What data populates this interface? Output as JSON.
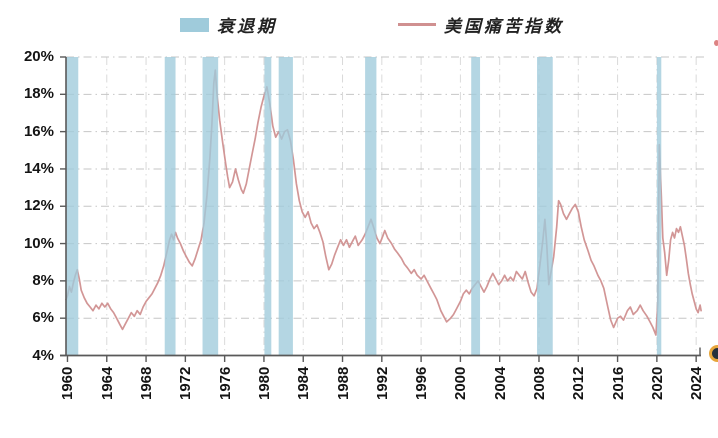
{
  "legend": {
    "recession_label": "衰退期",
    "series_label": "美国痛苦指数"
  },
  "chart_data": {
    "type": "line",
    "title": "",
    "xlabel": "",
    "ylabel": "",
    "legend_position": "top",
    "grid": "dash-dot horizontal and vertical",
    "y_range": [
      4,
      20
    ],
    "x_range": [
      1959.85,
      2024.9
    ],
    "y_ticks": [
      "20%",
      "18%",
      "16%",
      "14%",
      "12%",
      "10%",
      "8%",
      "6%",
      "4%"
    ],
    "y_tick_values": [
      20,
      18,
      16,
      14,
      12,
      10,
      8,
      6,
      4
    ],
    "x_ticks": [
      "1960",
      "1964",
      "1968",
      "1972",
      "1976",
      "1980",
      "1984",
      "1988",
      "1992",
      "1996",
      "2000",
      "2004",
      "2008",
      "2012",
      "2016",
      "2020",
      "2024"
    ],
    "x_tick_values": [
      1960,
      1964,
      1968,
      1972,
      1976,
      1980,
      1984,
      1988,
      1992,
      1996,
      2000,
      2004,
      2008,
      2012,
      2016,
      2020,
      2024
    ],
    "recession_bands": [
      [
        1959.9,
        1961.1
      ],
      [
        1969.9,
        1971.0
      ],
      [
        1973.75,
        1975.34
      ],
      [
        1980.05,
        1980.75
      ],
      [
        1981.5,
        1982.95
      ],
      [
        1990.3,
        1991.45
      ],
      [
        2001.1,
        2002.0
      ],
      [
        2007.8,
        2009.4
      ],
      [
        2020.0,
        2020.45
      ]
    ],
    "series": [
      {
        "name": "美国痛苦指数",
        "points": [
          [
            1959.85,
            7.0
          ],
          [
            1960.0,
            7.2
          ],
          [
            1960.2,
            7.7
          ],
          [
            1960.4,
            7.4
          ],
          [
            1960.6,
            7.9
          ],
          [
            1960.8,
            8.3
          ],
          [
            1961.0,
            8.6
          ],
          [
            1961.2,
            8.1
          ],
          [
            1961.4,
            7.5
          ],
          [
            1961.7,
            7.1
          ],
          [
            1962.0,
            6.8
          ],
          [
            1962.3,
            6.6
          ],
          [
            1962.6,
            6.4
          ],
          [
            1962.9,
            6.7
          ],
          [
            1963.2,
            6.5
          ],
          [
            1963.5,
            6.8
          ],
          [
            1963.8,
            6.6
          ],
          [
            1964.1,
            6.8
          ],
          [
            1964.4,
            6.5
          ],
          [
            1964.7,
            6.3
          ],
          [
            1965.0,
            6.0
          ],
          [
            1965.3,
            5.7
          ],
          [
            1965.6,
            5.4
          ],
          [
            1965.9,
            5.7
          ],
          [
            1966.2,
            6.0
          ],
          [
            1966.5,
            6.3
          ],
          [
            1966.8,
            6.1
          ],
          [
            1967.1,
            6.4
          ],
          [
            1967.4,
            6.2
          ],
          [
            1967.7,
            6.6
          ],
          [
            1968.0,
            6.9
          ],
          [
            1968.3,
            7.1
          ],
          [
            1968.6,
            7.3
          ],
          [
            1968.9,
            7.6
          ],
          [
            1969.2,
            7.9
          ],
          [
            1969.5,
            8.3
          ],
          [
            1969.8,
            8.8
          ],
          [
            1970.1,
            9.5
          ],
          [
            1970.4,
            10.2
          ],
          [
            1970.6,
            10.5
          ],
          [
            1970.8,
            10.2
          ],
          [
            1971.0,
            10.6
          ],
          [
            1971.2,
            10.3
          ],
          [
            1971.5,
            10.0
          ],
          [
            1971.8,
            9.6
          ],
          [
            1972.1,
            9.3
          ],
          [
            1972.4,
            9.0
          ],
          [
            1972.7,
            8.8
          ],
          [
            1973.0,
            9.2
          ],
          [
            1973.3,
            9.7
          ],
          [
            1973.6,
            10.2
          ],
          [
            1973.9,
            11.1
          ],
          [
            1974.2,
            12.6
          ],
          [
            1974.5,
            14.6
          ],
          [
            1974.7,
            16.4
          ],
          [
            1974.9,
            18.6
          ],
          [
            1975.05,
            19.3
          ],
          [
            1975.2,
            18.1
          ],
          [
            1975.5,
            16.6
          ],
          [
            1975.8,
            15.4
          ],
          [
            1976.1,
            14.3
          ],
          [
            1976.3,
            13.6
          ],
          [
            1976.5,
            13.0
          ],
          [
            1976.8,
            13.3
          ],
          [
            1977.1,
            14.0
          ],
          [
            1977.4,
            13.4
          ],
          [
            1977.7,
            12.9
          ],
          [
            1977.9,
            12.7
          ],
          [
            1978.2,
            13.2
          ],
          [
            1978.5,
            14.0
          ],
          [
            1978.8,
            14.8
          ],
          [
            1979.1,
            15.6
          ],
          [
            1979.4,
            16.5
          ],
          [
            1979.7,
            17.3
          ],
          [
            1980.0,
            17.9
          ],
          [
            1980.3,
            18.4
          ],
          [
            1980.6,
            17.5
          ],
          [
            1980.9,
            16.3
          ],
          [
            1981.2,
            15.7
          ],
          [
            1981.5,
            16.0
          ],
          [
            1981.8,
            15.6
          ],
          [
            1982.1,
            16.0
          ],
          [
            1982.4,
            16.1
          ],
          [
            1982.7,
            15.5
          ],
          [
            1983.0,
            14.5
          ],
          [
            1983.3,
            13.2
          ],
          [
            1983.6,
            12.3
          ],
          [
            1983.9,
            11.7
          ],
          [
            1984.2,
            11.4
          ],
          [
            1984.5,
            11.7
          ],
          [
            1984.8,
            11.1
          ],
          [
            1985.1,
            10.8
          ],
          [
            1985.4,
            11.0
          ],
          [
            1985.7,
            10.6
          ],
          [
            1986.0,
            10.1
          ],
          [
            1986.3,
            9.3
          ],
          [
            1986.6,
            8.6
          ],
          [
            1986.9,
            8.9
          ],
          [
            1987.2,
            9.4
          ],
          [
            1987.5,
            9.8
          ],
          [
            1987.8,
            10.2
          ],
          [
            1988.1,
            9.9
          ],
          [
            1988.4,
            10.2
          ],
          [
            1988.7,
            9.8
          ],
          [
            1989.0,
            10.1
          ],
          [
            1989.3,
            10.4
          ],
          [
            1989.6,
            9.9
          ],
          [
            1990.0,
            10.2
          ],
          [
            1990.3,
            10.5
          ],
          [
            1990.6,
            10.9
          ],
          [
            1990.9,
            11.3
          ],
          [
            1991.2,
            10.8
          ],
          [
            1991.5,
            10.3
          ],
          [
            1991.8,
            10.0
          ],
          [
            1992.1,
            10.4
          ],
          [
            1992.3,
            10.7
          ],
          [
            1992.6,
            10.3
          ],
          [
            1993.0,
            10.0
          ],
          [
            1993.3,
            9.7
          ],
          [
            1993.6,
            9.5
          ],
          [
            1994.0,
            9.2
          ],
          [
            1994.3,
            8.9
          ],
          [
            1994.6,
            8.7
          ],
          [
            1995.0,
            8.4
          ],
          [
            1995.3,
            8.6
          ],
          [
            1995.6,
            8.3
          ],
          [
            1996.0,
            8.1
          ],
          [
            1996.3,
            8.3
          ],
          [
            1996.6,
            8.0
          ],
          [
            1997.0,
            7.6
          ],
          [
            1997.3,
            7.3
          ],
          [
            1997.6,
            7.0
          ],
          [
            1998.0,
            6.4
          ],
          [
            1998.3,
            6.1
          ],
          [
            1998.6,
            5.8
          ],
          [
            1999.0,
            6.0
          ],
          [
            1999.3,
            6.2
          ],
          [
            1999.6,
            6.5
          ],
          [
            2000.0,
            6.9
          ],
          [
            2000.3,
            7.3
          ],
          [
            2000.6,
            7.5
          ],
          [
            2000.9,
            7.3
          ],
          [
            2001.2,
            7.6
          ],
          [
            2001.5,
            7.8
          ],
          [
            2001.8,
            8.0
          ],
          [
            2002.1,
            7.7
          ],
          [
            2002.4,
            7.4
          ],
          [
            2002.7,
            7.7
          ],
          [
            2003.0,
            8.1
          ],
          [
            2003.3,
            8.4
          ],
          [
            2003.6,
            8.1
          ],
          [
            2003.9,
            7.8
          ],
          [
            2004.2,
            8.0
          ],
          [
            2004.5,
            8.3
          ],
          [
            2004.8,
            8.0
          ],
          [
            2005.1,
            8.2
          ],
          [
            2005.4,
            8.0
          ],
          [
            2005.7,
            8.5
          ],
          [
            2006.0,
            8.3
          ],
          [
            2006.3,
            8.1
          ],
          [
            2006.6,
            8.5
          ],
          [
            2006.9,
            7.9
          ],
          [
            2007.2,
            7.4
          ],
          [
            2007.5,
            7.2
          ],
          [
            2007.8,
            7.6
          ],
          [
            2008.1,
            8.9
          ],
          [
            2008.4,
            10.2
          ],
          [
            2008.6,
            11.3
          ],
          [
            2008.8,
            9.9
          ],
          [
            2009.0,
            7.8
          ],
          [
            2009.2,
            8.4
          ],
          [
            2009.5,
            9.3
          ],
          [
            2009.8,
            10.9
          ],
          [
            2010.0,
            12.3
          ],
          [
            2010.2,
            12.1
          ],
          [
            2010.5,
            11.6
          ],
          [
            2010.8,
            11.3
          ],
          [
            2011.1,
            11.6
          ],
          [
            2011.4,
            11.9
          ],
          [
            2011.7,
            12.1
          ],
          [
            2012.0,
            11.7
          ],
          [
            2012.3,
            10.9
          ],
          [
            2012.6,
            10.2
          ],
          [
            2013.0,
            9.6
          ],
          [
            2013.3,
            9.1
          ],
          [
            2013.6,
            8.8
          ],
          [
            2014.0,
            8.3
          ],
          [
            2014.3,
            8.0
          ],
          [
            2014.6,
            7.6
          ],
          [
            2015.0,
            6.6
          ],
          [
            2015.3,
            5.9
          ],
          [
            2015.6,
            5.5
          ],
          [
            2016.0,
            6.0
          ],
          [
            2016.3,
            6.1
          ],
          [
            2016.6,
            5.9
          ],
          [
            2017.0,
            6.4
          ],
          [
            2017.3,
            6.6
          ],
          [
            2017.6,
            6.2
          ],
          [
            2018.0,
            6.4
          ],
          [
            2018.3,
            6.7
          ],
          [
            2018.6,
            6.4
          ],
          [
            2019.0,
            6.1
          ],
          [
            2019.3,
            5.8
          ],
          [
            2019.6,
            5.5
          ],
          [
            2019.9,
            5.1
          ],
          [
            2020.1,
            6.8
          ],
          [
            2020.25,
            15.3
          ],
          [
            2020.45,
            12.6
          ],
          [
            2020.6,
            10.3
          ],
          [
            2020.8,
            9.5
          ],
          [
            2021.0,
            8.3
          ],
          [
            2021.2,
            9.1
          ],
          [
            2021.4,
            10.2
          ],
          [
            2021.6,
            10.6
          ],
          [
            2021.8,
            10.3
          ],
          [
            2022.0,
            10.8
          ],
          [
            2022.2,
            10.6
          ],
          [
            2022.4,
            10.9
          ],
          [
            2022.6,
            10.4
          ],
          [
            2022.8,
            9.9
          ],
          [
            2023.0,
            9.2
          ],
          [
            2023.2,
            8.4
          ],
          [
            2023.4,
            7.8
          ],
          [
            2023.6,
            7.3
          ],
          [
            2023.8,
            6.9
          ],
          [
            2024.0,
            6.5
          ],
          [
            2024.2,
            6.3
          ],
          [
            2024.4,
            6.7
          ],
          [
            2024.5,
            6.4
          ]
        ]
      }
    ],
    "colors": {
      "band": "#9fcbdb",
      "line": "#d09090",
      "grid_h": "#c6c6c6",
      "grid_v": "#dadada",
      "axis": "#595959",
      "text": "#141414"
    }
  }
}
